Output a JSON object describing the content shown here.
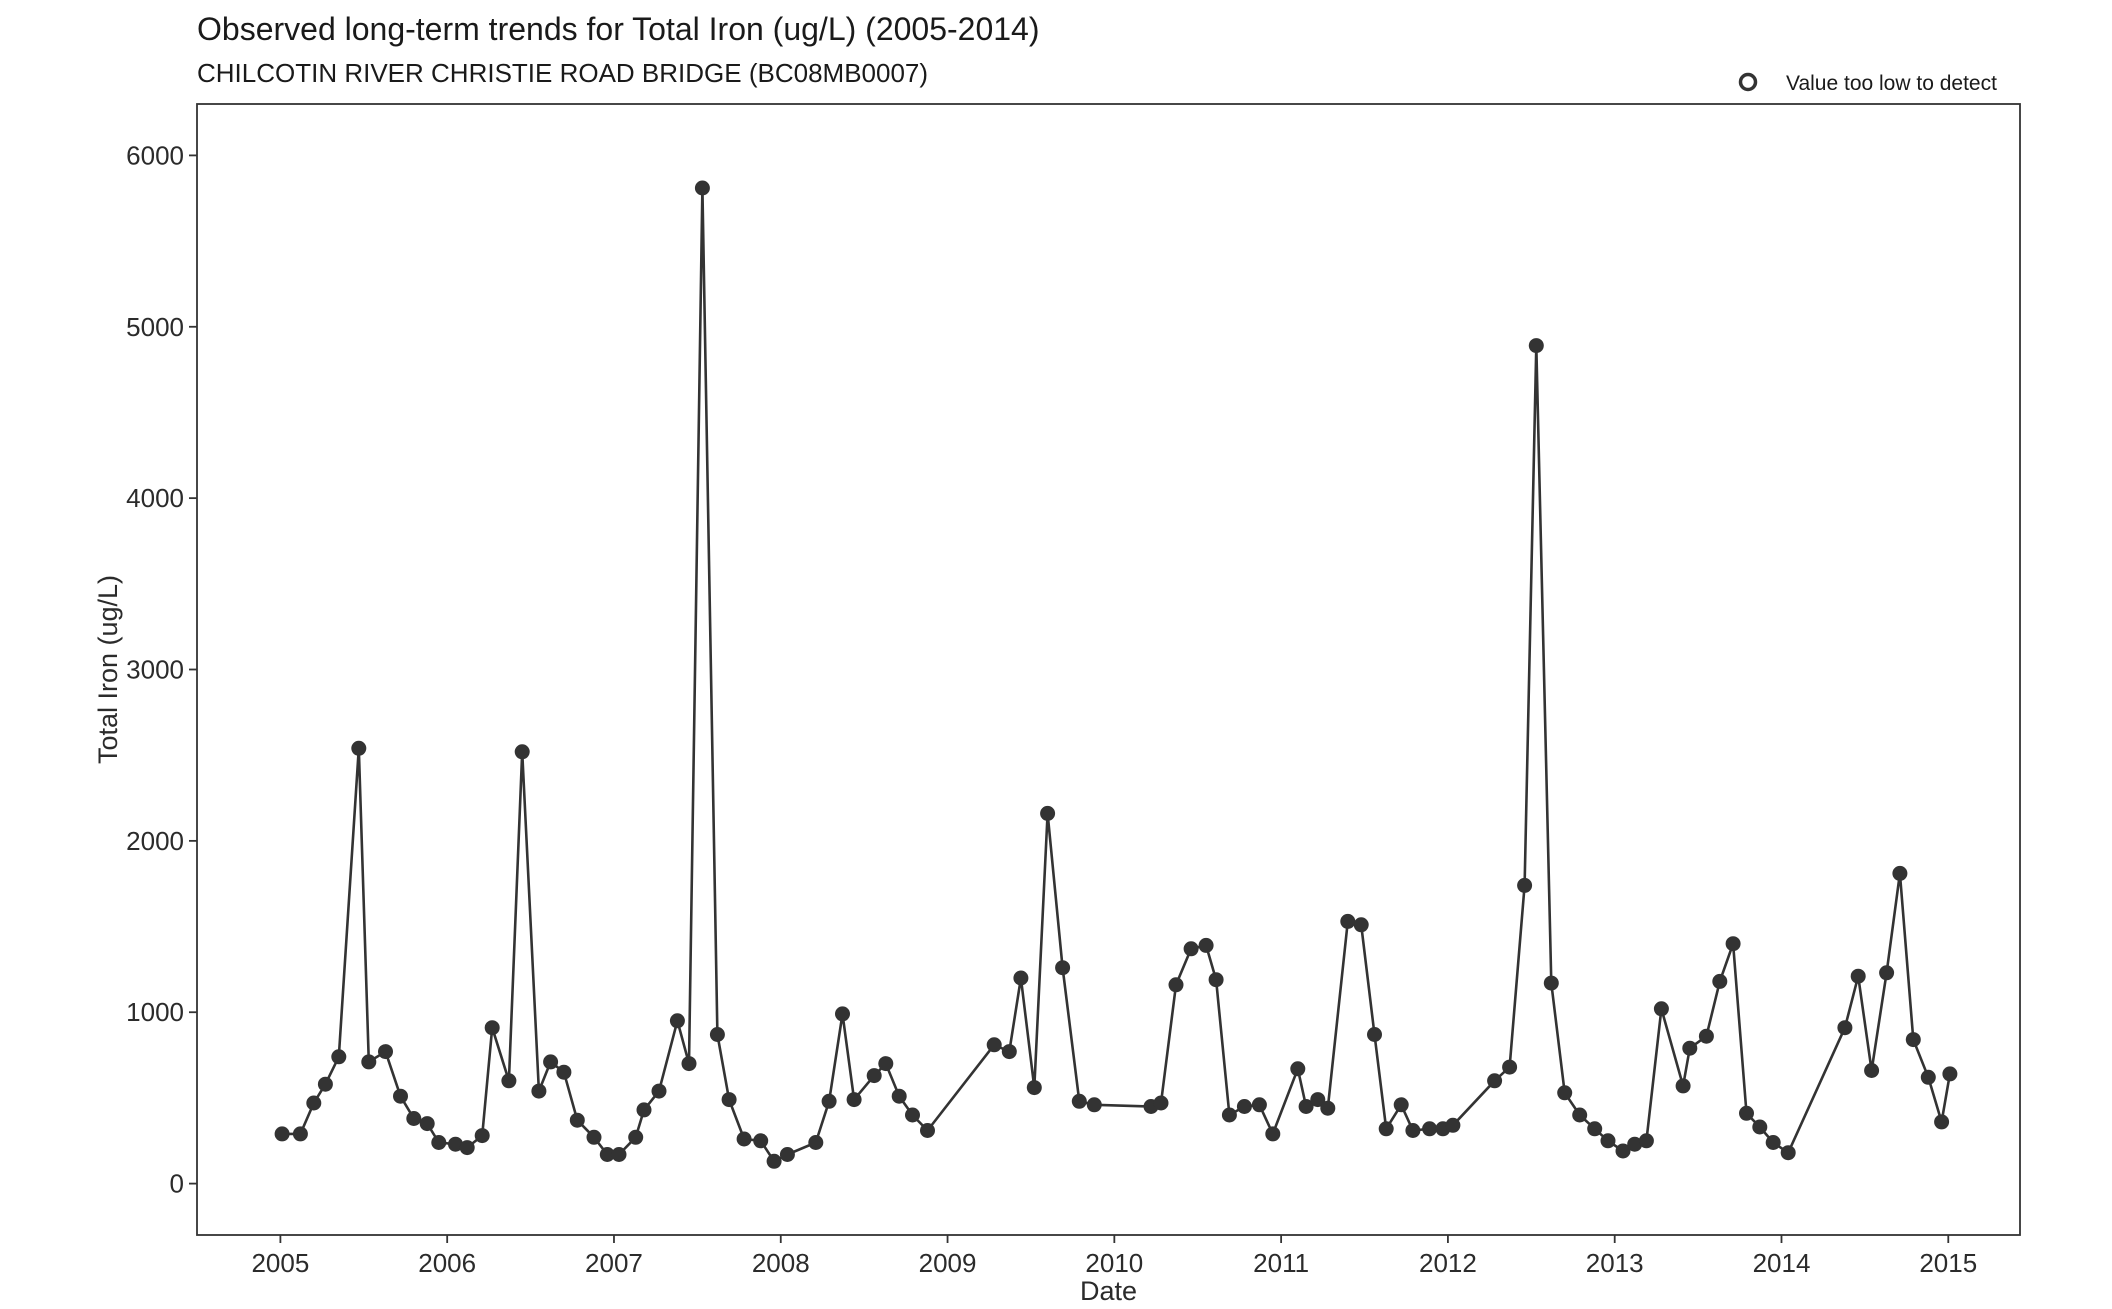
{
  "chart_data": {
    "type": "line",
    "title": "Observed long-term trends for Total Iron (ug/L) (2005-2014)",
    "subtitle": "CHILCOTIN RIVER CHRISTIE ROAD BRIDGE (BC08MB0007)",
    "xlabel": "Date",
    "ylabel": "Total Iron (ug/L)",
    "xlim": [
      2004.5,
      2015.43
    ],
    "ylim": [
      -300,
      6300
    ],
    "x_ticks": [
      2005,
      2006,
      2007,
      2008,
      2009,
      2010,
      2011,
      2012,
      2013,
      2014,
      2015
    ],
    "x_tick_labels": [
      "2005",
      "2006",
      "2007",
      "2008",
      "2009",
      "2010",
      "2011",
      "2012",
      "2013",
      "2014",
      "2015"
    ],
    "y_ticks": [
      0,
      1000,
      2000,
      3000,
      4000,
      5000,
      6000
    ],
    "y_tick_labels": [
      "0",
      "1000",
      "2000",
      "3000",
      "4000",
      "5000",
      "6000"
    ],
    "grid": false,
    "legend": {
      "position": "top-right",
      "entries": [
        {
          "label": "Value too low to detect",
          "marker": "open-circle"
        }
      ]
    },
    "colors": {
      "line": "#333333",
      "point": "#333333"
    },
    "series": [
      {
        "points": [
          [
            2005.01,
            290
          ],
          [
            2005.12,
            290
          ],
          [
            2005.2,
            470
          ],
          [
            2005.27,
            580
          ],
          [
            2005.35,
            740
          ],
          [
            2005.47,
            2540
          ],
          [
            2005.53,
            710
          ],
          [
            2005.63,
            770
          ],
          [
            2005.72,
            510
          ],
          [
            2005.8,
            380
          ],
          [
            2005.88,
            350
          ],
          [
            2005.95,
            240
          ],
          [
            2006.05,
            230
          ],
          [
            2006.12,
            210
          ],
          [
            2006.21,
            280
          ],
          [
            2006.27,
            910
          ],
          [
            2006.37,
            600
          ],
          [
            2006.45,
            2520
          ],
          [
            2006.55,
            540
          ],
          [
            2006.62,
            710
          ],
          [
            2006.7,
            650
          ],
          [
            2006.78,
            370
          ],
          [
            2006.88,
            270
          ],
          [
            2006.96,
            170
          ],
          [
            2007.03,
            170
          ],
          [
            2007.13,
            270
          ],
          [
            2007.18,
            430
          ],
          [
            2007.27,
            540
          ],
          [
            2007.38,
            950
          ],
          [
            2007.45,
            700
          ],
          [
            2007.53,
            5810
          ],
          [
            2007.62,
            870
          ],
          [
            2007.69,
            490
          ],
          [
            2007.78,
            260
          ],
          [
            2007.88,
            250
          ],
          [
            2007.96,
            130
          ],
          [
            2008.04,
            170
          ],
          [
            2008.21,
            240
          ],
          [
            2008.29,
            480
          ],
          [
            2008.37,
            990
          ],
          [
            2008.44,
            490
          ],
          [
            2008.56,
            630
          ],
          [
            2008.63,
            700
          ],
          [
            2008.71,
            510
          ],
          [
            2008.79,
            400
          ],
          [
            2008.88,
            310
          ],
          [
            2009.28,
            810
          ],
          [
            2009.37,
            770
          ],
          [
            2009.44,
            1200
          ],
          [
            2009.52,
            560
          ],
          [
            2009.6,
            2160
          ],
          [
            2009.69,
            1260
          ],
          [
            2009.79,
            480
          ],
          [
            2009.88,
            460
          ],
          [
            2010.22,
            450
          ],
          [
            2010.28,
            470
          ],
          [
            2010.37,
            1160
          ],
          [
            2010.46,
            1370
          ],
          [
            2010.55,
            1390
          ],
          [
            2010.61,
            1190
          ],
          [
            2010.69,
            400
          ],
          [
            2010.78,
            450
          ],
          [
            2010.87,
            460
          ],
          [
            2010.95,
            290
          ],
          [
            2011.1,
            670
          ],
          [
            2011.15,
            450
          ],
          [
            2011.22,
            490
          ],
          [
            2011.28,
            440
          ],
          [
            2011.4,
            1530
          ],
          [
            2011.48,
            1510
          ],
          [
            2011.56,
            870
          ],
          [
            2011.63,
            320
          ],
          [
            2011.72,
            460
          ],
          [
            2011.79,
            310
          ],
          [
            2011.89,
            320
          ],
          [
            2011.97,
            320
          ],
          [
            2012.03,
            340
          ],
          [
            2012.28,
            600
          ],
          [
            2012.37,
            680
          ],
          [
            2012.46,
            1740
          ],
          [
            2012.53,
            4890
          ],
          [
            2012.62,
            1170
          ],
          [
            2012.7,
            530
          ],
          [
            2012.79,
            400
          ],
          [
            2012.88,
            320
          ],
          [
            2012.96,
            250
          ],
          [
            2013.05,
            190
          ],
          [
            2013.12,
            230
          ],
          [
            2013.19,
            250
          ],
          [
            2013.28,
            1020
          ],
          [
            2013.41,
            570
          ],
          [
            2013.45,
            790
          ],
          [
            2013.55,
            860
          ],
          [
            2013.63,
            1180
          ],
          [
            2013.71,
            1400
          ],
          [
            2013.79,
            410
          ],
          [
            2013.87,
            330
          ],
          [
            2013.95,
            240
          ],
          [
            2014.04,
            180
          ],
          [
            2014.38,
            910
          ],
          [
            2014.46,
            1210
          ],
          [
            2014.54,
            660
          ],
          [
            2014.63,
            1230
          ],
          [
            2014.71,
            1810
          ],
          [
            2014.79,
            840
          ],
          [
            2014.88,
            620
          ],
          [
            2014.96,
            360
          ],
          [
            2015.01,
            640
          ]
        ]
      }
    ]
  }
}
